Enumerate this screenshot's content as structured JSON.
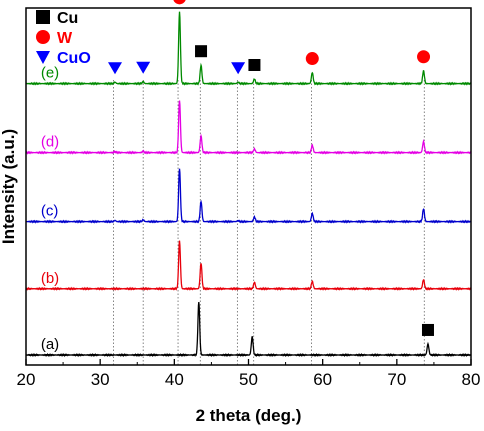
{
  "chart_data": {
    "type": "line",
    "title": "",
    "xlabel": "2 theta (deg.)",
    "ylabel": "Intensity (a.u.)",
    "xlim": [
      20,
      80
    ],
    "xticks": [
      20,
      30,
      40,
      50,
      60,
      70,
      80
    ],
    "yticks_shown": false,
    "grid": false,
    "legend": {
      "placement": "top-left",
      "entries": [
        {
          "label": "Cu",
          "marker": "square",
          "color": "#000000"
        },
        {
          "label": "W",
          "marker": "circle",
          "color": "#ff0000"
        },
        {
          "label": "CuO",
          "marker": "triangle-down",
          "color": "#0000ff"
        }
      ]
    },
    "reference_lines_x": [
      31.8,
      35.8,
      40.5,
      43.5,
      48.5,
      50.7,
      58.5,
      73.7
    ],
    "series": [
      {
        "name": "(a)",
        "color": "#000000",
        "offset": 0.0,
        "peaks": [
          {
            "x": 43.3,
            "h": 0.58
          },
          {
            "x": 50.5,
            "h": 0.2
          },
          {
            "x": 74.2,
            "h": 0.12
          }
        ]
      },
      {
        "name": "(b)",
        "color": "#e8000b",
        "offset": 0.72,
        "peaks": [
          {
            "x": 40.7,
            "h": 0.52
          },
          {
            "x": 43.6,
            "h": 0.28
          },
          {
            "x": 50.8,
            "h": 0.07
          },
          {
            "x": 58.6,
            "h": 0.08
          },
          {
            "x": 73.6,
            "h": 0.1
          }
        ]
      },
      {
        "name": "(c)",
        "color": "#0000cc",
        "offset": 1.45,
        "peaks": [
          {
            "x": 32.0,
            "h": 0.012
          },
          {
            "x": 35.8,
            "h": 0.02
          },
          {
            "x": 40.7,
            "h": 0.58
          },
          {
            "x": 43.6,
            "h": 0.22
          },
          {
            "x": 48.6,
            "h": 0.01
          },
          {
            "x": 50.8,
            "h": 0.05
          },
          {
            "x": 58.6,
            "h": 0.09
          },
          {
            "x": 73.6,
            "h": 0.14
          }
        ]
      },
      {
        "name": "(d)",
        "color": "#e400e4",
        "offset": 2.2,
        "peaks": [
          {
            "x": 32.0,
            "h": 0.01
          },
          {
            "x": 35.8,
            "h": 0.015
          },
          {
            "x": 40.7,
            "h": 0.57
          },
          {
            "x": 43.6,
            "h": 0.18
          },
          {
            "x": 50.8,
            "h": 0.04
          },
          {
            "x": 58.6,
            "h": 0.08
          },
          {
            "x": 73.6,
            "h": 0.12
          }
        ]
      },
      {
        "name": "(e)",
        "color": "#008a00",
        "offset": 2.95,
        "peaks": [
          {
            "x": 32.0,
            "h": 0.015
          },
          {
            "x": 35.8,
            "h": 0.02
          },
          {
            "x": 40.7,
            "h": 0.78
          },
          {
            "x": 43.6,
            "h": 0.2
          },
          {
            "x": 48.6,
            "h": 0.015
          },
          {
            "x": 50.8,
            "h": 0.05
          },
          {
            "x": 58.6,
            "h": 0.12
          },
          {
            "x": 73.6,
            "h": 0.14
          }
        ]
      }
    ],
    "peak_markers": [
      {
        "x": 40.7,
        "type": "circle",
        "color": "#ff0000",
        "at_series": "(e)"
      },
      {
        "x": 43.6,
        "type": "square",
        "color": "#000000",
        "at_series": "(e)"
      },
      {
        "x": 50.8,
        "type": "square",
        "color": "#000000",
        "at_series": "(e)"
      },
      {
        "x": 58.6,
        "type": "circle",
        "color": "#ff0000",
        "at_series": "(e)"
      },
      {
        "x": 73.6,
        "type": "circle",
        "color": "#ff0000",
        "at_series": "(e)"
      },
      {
        "x": 32.0,
        "type": "triangle-down",
        "color": "#0000ff",
        "at_series": "(e)"
      },
      {
        "x": 35.8,
        "type": "triangle-down",
        "color": "#0000ff",
        "at_series": "(e)"
      },
      {
        "x": 48.6,
        "type": "triangle-down",
        "color": "#0000ff",
        "at_series": "(e)"
      },
      {
        "x": 74.2,
        "type": "square",
        "color": "#000000",
        "at_series": "(a)"
      }
    ]
  }
}
